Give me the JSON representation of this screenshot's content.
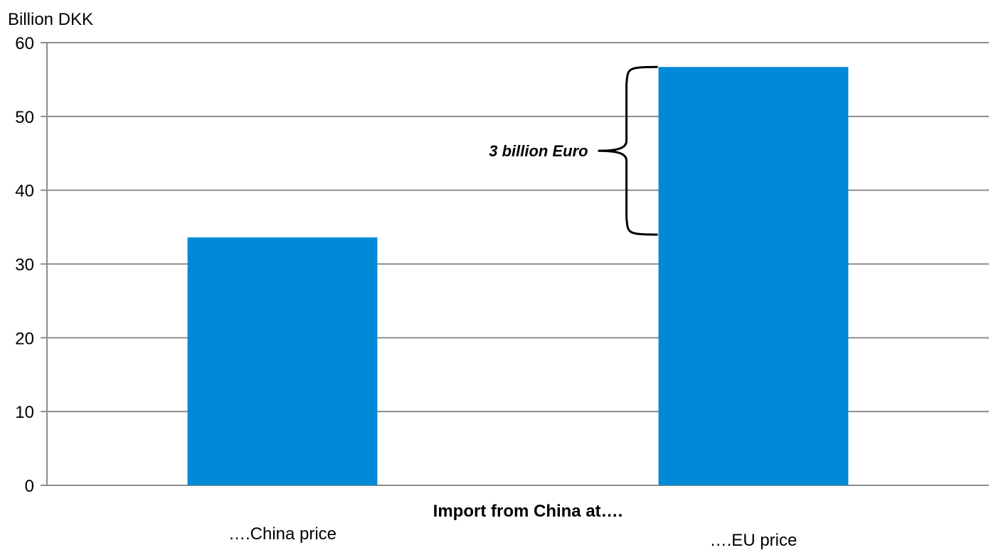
{
  "chart_data": {
    "type": "bar",
    "ylabel": "Billion DKK",
    "xlabel": "Import from China at….",
    "categories": [
      "….China price",
      "….EU price"
    ],
    "values": [
      33.6,
      56.7
    ],
    "ylim": [
      0,
      60
    ],
    "yticks": [
      0,
      10,
      20,
      30,
      40,
      50,
      60
    ],
    "grid": true,
    "legend": "none",
    "bar_color": "#0089D6",
    "annotation": {
      "text": "3 billion Euro",
      "from_value": 33.6,
      "to_value": 56.7,
      "category": "….EU price"
    }
  }
}
